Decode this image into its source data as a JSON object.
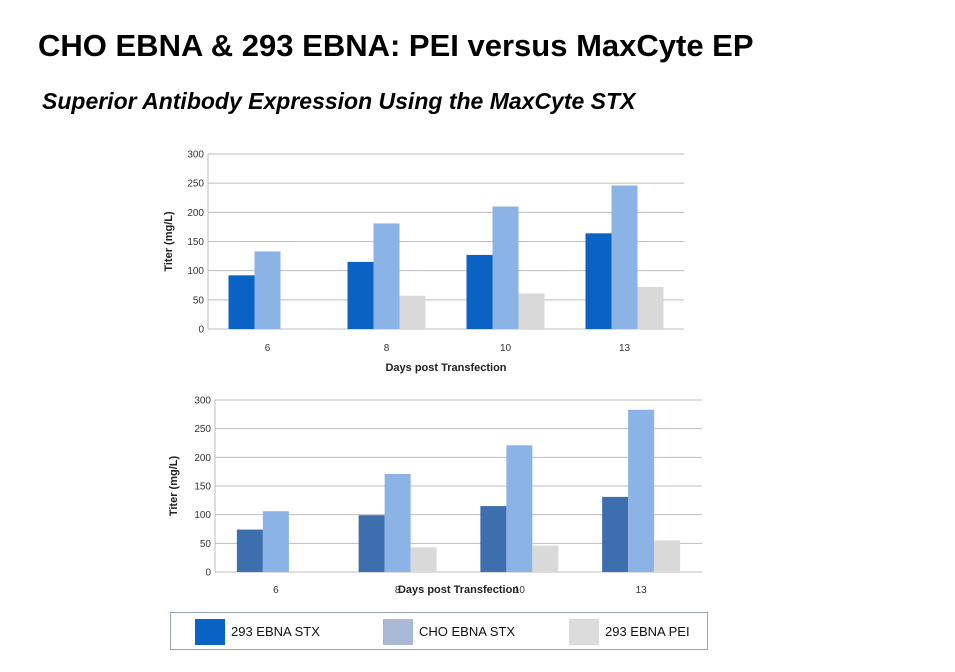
{
  "title": "CHO EBNA & 293 EBNA: PEI versus MaxCyte EP",
  "subtitle": "Superior Antibody Expression Using the MaxCyte STX",
  "legend": [
    {
      "label": "293 EBNA STX",
      "color": "#0a62c4"
    },
    {
      "label": "CHO EBNA STX",
      "color": "#a9b9d5"
    },
    {
      "label": "293 EBNA PEI",
      "color": "#dcdcdc"
    }
  ],
  "chart_data": [
    {
      "type": "bar",
      "categories": [
        "6",
        "8",
        "10",
        "13"
      ],
      "xlabel": "Days post Transfection",
      "ylabel": "Titer (mg/L)",
      "ylim": [
        0,
        300
      ],
      "yticks": [
        0,
        50,
        100,
        150,
        200,
        250,
        300
      ],
      "grid": true,
      "series": [
        {
          "values": [
            92,
            115,
            127,
            164
          ],
          "color": "#0a62c4"
        },
        {
          "values": [
            133,
            181,
            210,
            246
          ],
          "color": "#8cb3e6"
        },
        {
          "values": [
            0,
            57,
            61,
            72
          ],
          "color": "#d9d9d9"
        }
      ]
    },
    {
      "type": "bar",
      "categories": [
        "6",
        "8",
        "10",
        "13"
      ],
      "xlabel": "Days post Transfection",
      "ylabel": "Titer (mg/L)",
      "ylim": [
        0,
        300
      ],
      "yticks": [
        0,
        50,
        100,
        150,
        200,
        250,
        300
      ],
      "grid": true,
      "series": [
        {
          "values": [
            74,
            99,
            115,
            131
          ],
          "color": "#3d6fae"
        },
        {
          "values": [
            106,
            171,
            221,
            283
          ],
          "color": "#8cb3e6"
        },
        {
          "values": [
            0,
            43,
            46,
            55
          ],
          "color": "#d9d9d9"
        }
      ]
    }
  ]
}
